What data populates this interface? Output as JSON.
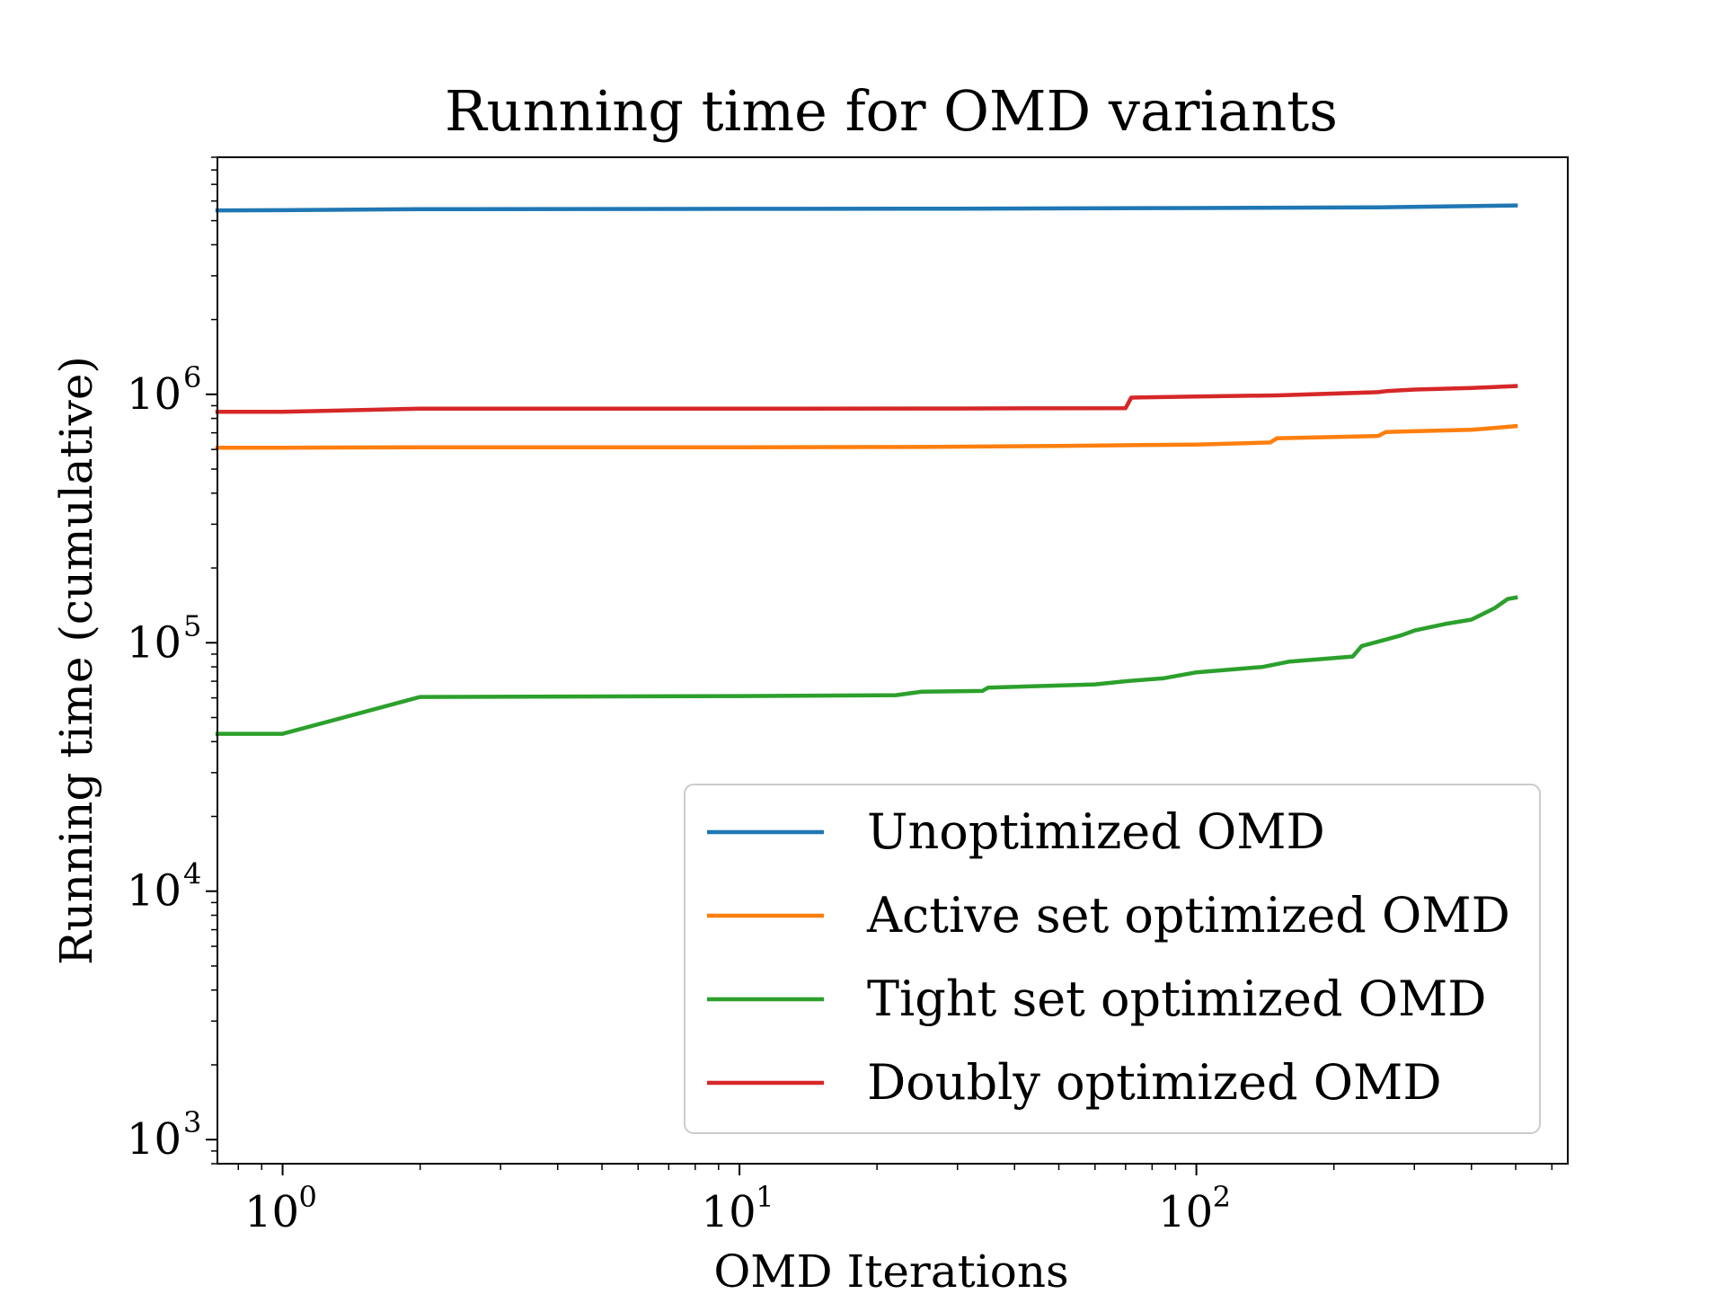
{
  "chart_data": {
    "type": "line",
    "title": "Running time for OMD variants",
    "xlabel": "OMD Iterations",
    "ylabel": "Running time (cumulative)",
    "x_scale": "log",
    "y_scale": "log",
    "xlim": [
      0.72,
      650
    ],
    "ylim": [
      800,
      9000000
    ],
    "x_ticks": [
      {
        "base": "10",
        "exp": "0",
        "value": 1
      },
      {
        "base": "10",
        "exp": "1",
        "value": 10
      },
      {
        "base": "10",
        "exp": "2",
        "value": 100
      }
    ],
    "y_ticks": [
      {
        "base": "10",
        "exp": "3",
        "value": 1000
      },
      {
        "base": "10",
        "exp": "4",
        "value": 10000
      },
      {
        "base": "10",
        "exp": "5",
        "value": 100000
      },
      {
        "base": "10",
        "exp": "6",
        "value": 1000000
      }
    ],
    "legend": {
      "placement": "lower-right"
    },
    "grid": false,
    "series": [
      {
        "name": "Unoptimized OMD",
        "color": "#1f77b4",
        "points": [
          [
            0.72,
            5500000
          ],
          [
            1,
            5510000
          ],
          [
            2,
            5560000
          ],
          [
            10,
            5580000
          ],
          [
            30,
            5590000
          ],
          [
            100,
            5620000
          ],
          [
            250,
            5660000
          ],
          [
            500,
            5760000
          ]
        ]
      },
      {
        "name": "Active set optimized OMD",
        "color": "#ff7f0e",
        "points": [
          [
            0.72,
            610000
          ],
          [
            1,
            610000
          ],
          [
            2,
            612000
          ],
          [
            10,
            612000
          ],
          [
            25,
            614000
          ],
          [
            50,
            620000
          ],
          [
            100,
            628000
          ],
          [
            145,
            640000
          ],
          [
            150,
            665000
          ],
          [
            250,
            680000
          ],
          [
            260,
            705000
          ],
          [
            300,
            710000
          ],
          [
            400,
            720000
          ],
          [
            480,
            740000
          ],
          [
            500,
            745000
          ]
        ]
      },
      {
        "name": "Tight set optimized OMD",
        "color": "#2ca02c",
        "points": [
          [
            0.72,
            43000
          ],
          [
            1,
            43000
          ],
          [
            2,
            60500
          ],
          [
            10,
            61000
          ],
          [
            22,
            61500
          ],
          [
            25,
            63500
          ],
          [
            34,
            64000
          ],
          [
            35,
            66000
          ],
          [
            60,
            68000
          ],
          [
            70,
            70000
          ],
          [
            85,
            72000
          ],
          [
            100,
            76000
          ],
          [
            140,
            80000
          ],
          [
            160,
            84000
          ],
          [
            220,
            88000
          ],
          [
            230,
            97000
          ],
          [
            260,
            103000
          ],
          [
            280,
            107000
          ],
          [
            300,
            112000
          ],
          [
            350,
            119000
          ],
          [
            400,
            124000
          ],
          [
            450,
            138000
          ],
          [
            480,
            150000
          ],
          [
            500,
            152000
          ]
        ]
      },
      {
        "name": "Doubly optimized OMD",
        "color": "#d62728",
        "points": [
          [
            0.72,
            850000
          ],
          [
            1,
            850000
          ],
          [
            2,
            875000
          ],
          [
            10,
            875000
          ],
          [
            30,
            877000
          ],
          [
            70,
            880000
          ],
          [
            72,
            970000
          ],
          [
            100,
            980000
          ],
          [
            150,
            990000
          ],
          [
            250,
            1020000
          ],
          [
            260,
            1030000
          ],
          [
            300,
            1045000
          ],
          [
            400,
            1060000
          ],
          [
            500,
            1080000
          ]
        ]
      }
    ]
  }
}
